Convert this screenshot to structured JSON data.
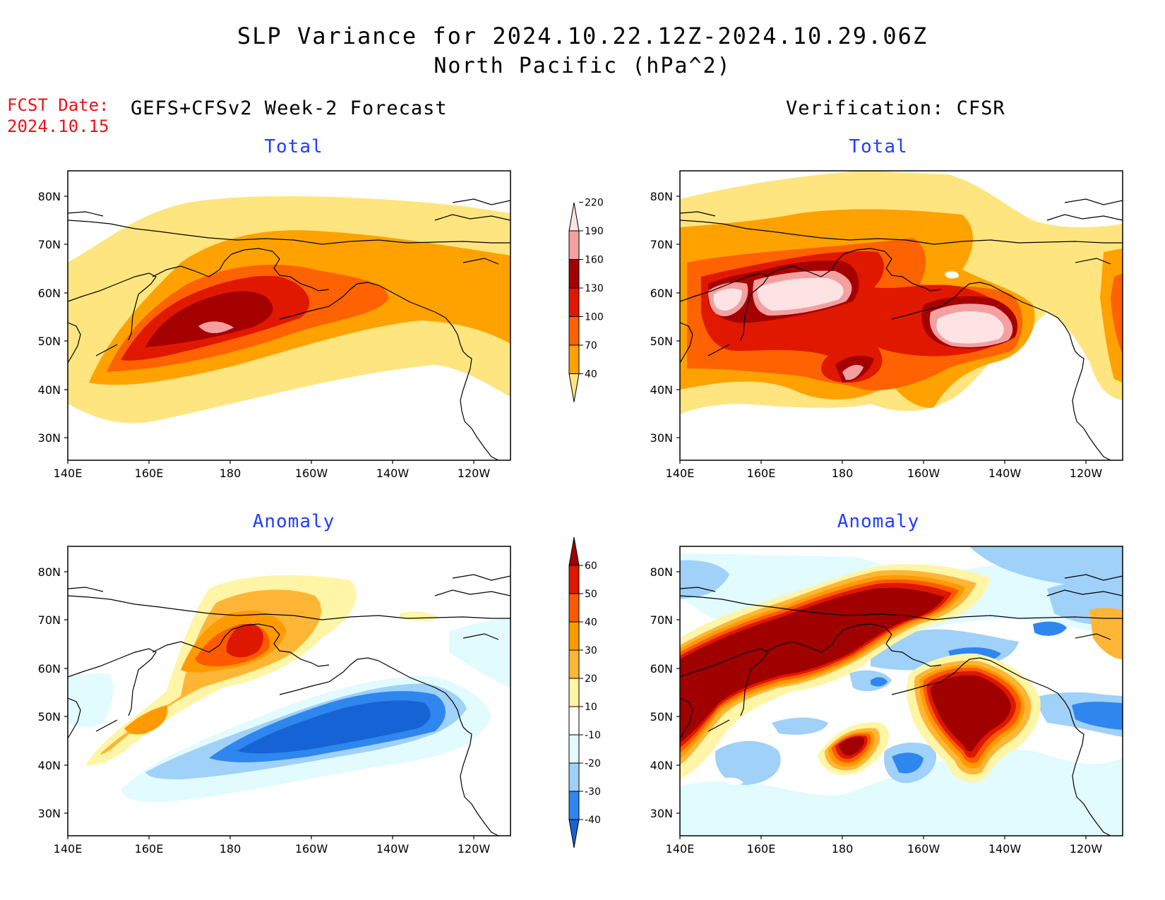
{
  "title_line1": "SLP Variance for 2024.10.22.12Z-2024.10.29.06Z",
  "title_line2": "North Pacific (hPa^2)",
  "fcst_date_label": "FCST Date:",
  "fcst_date_value": "2024.10.15",
  "left_header": "GEFS+CFSv2 Week-2 Forecast",
  "right_header": "Verification: CFSR",
  "panel_titles": {
    "total": "Total",
    "anomaly": "Anomaly"
  },
  "lat_labels": [
    "80N",
    "70N",
    "60N",
    "50N",
    "40N",
    "30N"
  ],
  "lon_labels": [
    "140E",
    "160E",
    "180",
    "160W",
    "140W",
    "120W"
  ],
  "total_colorbar": {
    "levels": [
      "40",
      "70",
      "100",
      "130",
      "160",
      "190",
      "220"
    ],
    "colors": [
      "#ffe57f",
      "#ffa200",
      "#ff6200",
      "#e11800",
      "#a50000",
      "#f4a0a0",
      "#fde3e3"
    ]
  },
  "anomaly_colorbar": {
    "levels": [
      "-40",
      "-30",
      "-20",
      "-10",
      "10",
      "20",
      "30",
      "40",
      "50",
      "60"
    ],
    "colors": [
      "#1663d6",
      "#2f86ee",
      "#9fd1f9",
      "#e1fbff",
      "#ffffff",
      "#fff5a6",
      "#ffb636",
      "#ff9b00",
      "#ff5a00",
      "#de1700",
      "#a00000"
    ]
  }
}
